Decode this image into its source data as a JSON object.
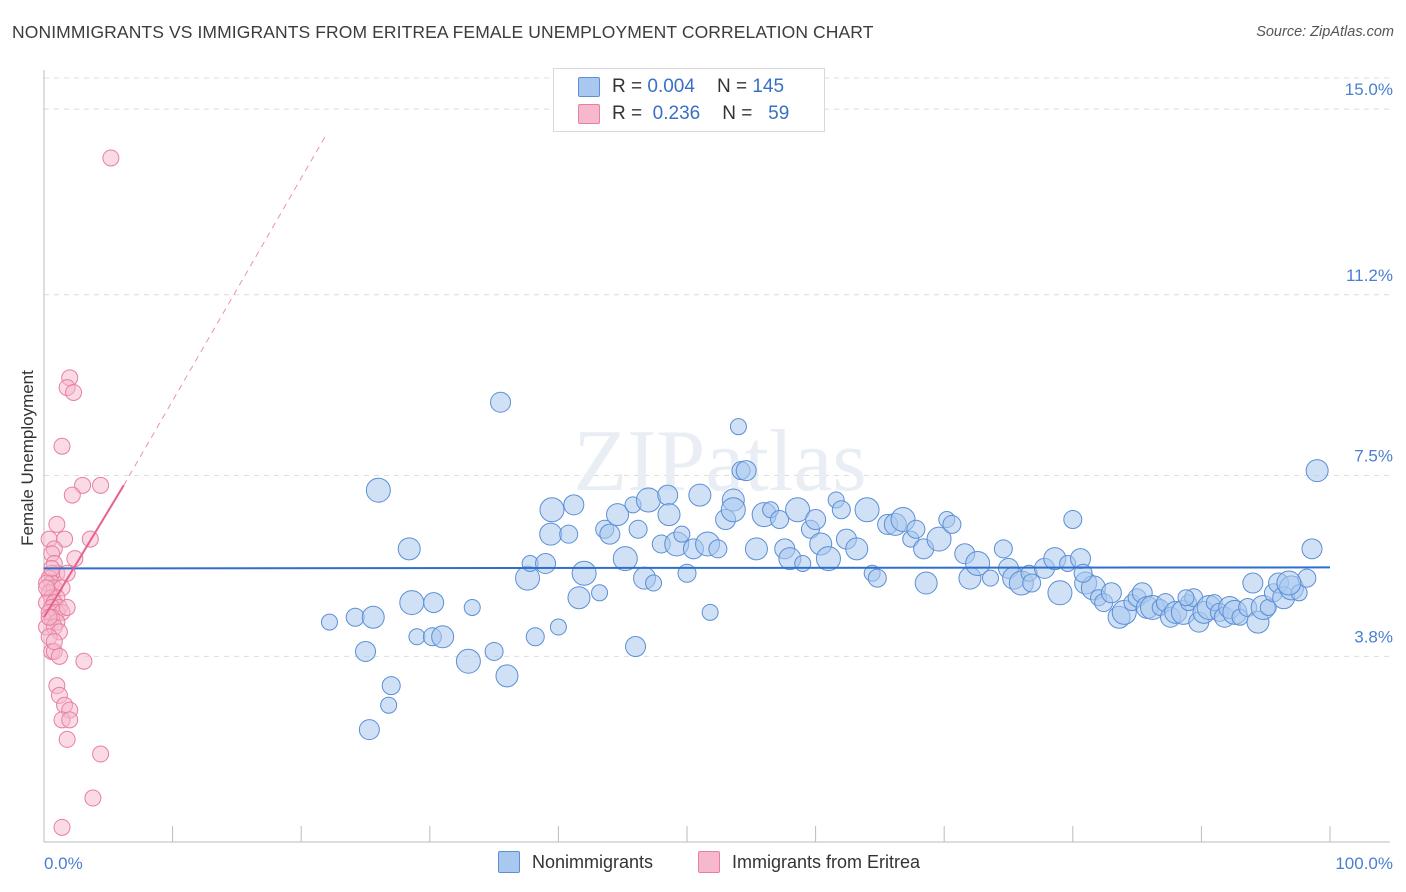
{
  "title": "NONIMMIGRANTS VS IMMIGRANTS FROM ERITREA FEMALE UNEMPLOYMENT CORRELATION CHART",
  "source": "Source: ZipAtlas.com",
  "watermark": "ZIPatlas",
  "colors": {
    "blue_fill": "#a9c8ef",
    "blue_stroke": "#5b8fd6",
    "blue_line": "#2e6fcc",
    "pink_fill": "#f6b8cc",
    "pink_stroke": "#e87fa0",
    "pink_line": "#e8608e",
    "tick_text": "#4a7fd0",
    "grid": "#dcdcdc"
  },
  "legend": {
    "rows": [
      {
        "r_label": "R =",
        "r_value": "0.004",
        "n_label": "N =",
        "n_value": "145"
      },
      {
        "r_label": "R =",
        "r_value": "0.236",
        "n_label": "N =",
        "n_value": "59"
      }
    ]
  },
  "bottom_legend": [
    "Nonimmigrants",
    "Immigrants from Eritrea"
  ],
  "chart_data": {
    "type": "scatter",
    "title": "NONIMMIGRANTS VS IMMIGRANTS FROM ERITREA FEMALE UNEMPLOYMENT CORRELATION CHART",
    "xlabel": "",
    "ylabel": "Female Unemployment",
    "xlim": [
      0,
      100
    ],
    "ylim": [
      0,
      15.8
    ],
    "x_tick_labels": [
      "0.0%",
      "100.0%"
    ],
    "y_ticks": [
      3.8,
      7.5,
      11.2,
      15.0
    ],
    "y_tick_labels": [
      "3.8%",
      "7.5%",
      "11.2%",
      "15.0%"
    ],
    "grid": "horizontal-dashed",
    "legend_position": "top-center",
    "series": [
      {
        "name": "Nonimmigrants",
        "trend": {
          "x0": 0,
          "y0": 5.6,
          "x1": 100,
          "y1": 5.62
        },
        "points": [
          [
            22.2,
            4.5
          ],
          [
            24.2,
            4.6
          ],
          [
            25.0,
            3.9
          ],
          [
            25.6,
            4.6
          ],
          [
            26.0,
            7.2
          ],
          [
            26.8,
            2.8
          ],
          [
            27.0,
            3.2
          ],
          [
            25.3,
            2.3
          ],
          [
            28.4,
            6.0
          ],
          [
            28.6,
            4.9
          ],
          [
            29.0,
            4.2
          ],
          [
            30.2,
            4.2
          ],
          [
            30.3,
            4.9
          ],
          [
            31.0,
            4.2
          ],
          [
            33.0,
            3.7
          ],
          [
            33.3,
            4.8
          ],
          [
            35.0,
            3.9
          ],
          [
            35.5,
            9.0
          ],
          [
            36.0,
            3.4
          ],
          [
            37.6,
            5.4
          ],
          [
            37.8,
            5.7
          ],
          [
            38.2,
            4.2
          ],
          [
            39.0,
            5.7
          ],
          [
            39.4,
            6.3
          ],
          [
            39.5,
            6.8
          ],
          [
            40.0,
            4.4
          ],
          [
            40.8,
            6.3
          ],
          [
            41.2,
            6.9
          ],
          [
            41.6,
            5.0
          ],
          [
            42.0,
            5.5
          ],
          [
            43.2,
            5.1
          ],
          [
            43.6,
            6.4
          ],
          [
            44.0,
            6.3
          ],
          [
            44.6,
            6.7
          ],
          [
            45.2,
            5.8
          ],
          [
            45.8,
            6.9
          ],
          [
            46.2,
            6.4
          ],
          [
            46.0,
            4.0
          ],
          [
            46.7,
            5.4
          ],
          [
            47.0,
            7.0
          ],
          [
            47.4,
            5.3
          ],
          [
            48.0,
            6.1
          ],
          [
            48.5,
            7.1
          ],
          [
            48.6,
            6.7
          ],
          [
            49.2,
            6.1
          ],
          [
            49.6,
            6.3
          ],
          [
            50.0,
            5.5
          ],
          [
            50.5,
            6.0
          ],
          [
            51.0,
            7.1
          ],
          [
            51.6,
            6.1
          ],
          [
            51.8,
            4.7
          ],
          [
            52.4,
            6.0
          ],
          [
            53.0,
            6.6
          ],
          [
            53.6,
            7.0
          ],
          [
            53.6,
            6.8
          ],
          [
            54.0,
            8.5
          ],
          [
            54.2,
            7.6
          ],
          [
            54.6,
            7.6
          ],
          [
            55.4,
            6.0
          ],
          [
            56.0,
            6.7
          ],
          [
            56.5,
            6.8
          ],
          [
            57.2,
            6.6
          ],
          [
            57.6,
            6.0
          ],
          [
            58.0,
            5.8
          ],
          [
            58.6,
            6.8
          ],
          [
            59.0,
            5.7
          ],
          [
            59.6,
            6.4
          ],
          [
            60.0,
            6.6
          ],
          [
            60.4,
            6.1
          ],
          [
            61.0,
            5.8
          ],
          [
            61.6,
            7.0
          ],
          [
            62.0,
            6.8
          ],
          [
            62.4,
            6.2
          ],
          [
            63.2,
            6.0
          ],
          [
            64.0,
            6.8
          ],
          [
            64.4,
            5.5
          ],
          [
            64.8,
            5.4
          ],
          [
            65.6,
            6.5
          ],
          [
            66.2,
            6.5
          ],
          [
            66.8,
            6.6
          ],
          [
            67.4,
            6.2
          ],
          [
            67.8,
            6.4
          ],
          [
            68.4,
            6.0
          ],
          [
            68.6,
            5.3
          ],
          [
            69.6,
            6.2
          ],
          [
            70.2,
            6.6
          ],
          [
            70.6,
            6.5
          ],
          [
            71.6,
            5.9
          ],
          [
            72.0,
            5.4
          ],
          [
            72.6,
            5.7
          ],
          [
            73.6,
            5.4
          ],
          [
            74.6,
            6.0
          ],
          [
            75.0,
            5.6
          ],
          [
            75.4,
            5.4
          ],
          [
            76.0,
            5.3
          ],
          [
            76.6,
            5.5
          ],
          [
            76.8,
            5.3
          ],
          [
            77.8,
            5.6
          ],
          [
            78.6,
            5.8
          ],
          [
            79.0,
            5.1
          ],
          [
            79.6,
            5.7
          ],
          [
            80.0,
            6.6
          ],
          [
            80.6,
            5.8
          ],
          [
            81.0,
            5.3
          ],
          [
            81.6,
            5.2
          ],
          [
            82.0,
            5.0
          ],
          [
            82.4,
            4.9
          ],
          [
            83.0,
            5.1
          ],
          [
            83.6,
            4.6
          ],
          [
            84.0,
            4.7
          ],
          [
            84.6,
            4.9
          ],
          [
            85.0,
            5.0
          ],
          [
            85.4,
            5.1
          ],
          [
            85.8,
            4.8
          ],
          [
            86.2,
            4.8
          ],
          [
            86.8,
            4.8
          ],
          [
            87.2,
            4.9
          ],
          [
            87.6,
            4.6
          ],
          [
            88.0,
            4.7
          ],
          [
            88.6,
            4.7
          ],
          [
            89.0,
            4.9
          ],
          [
            89.4,
            5.0
          ],
          [
            89.8,
            4.5
          ],
          [
            90.2,
            4.7
          ],
          [
            90.6,
            4.8
          ],
          [
            91.0,
            4.9
          ],
          [
            91.4,
            4.7
          ],
          [
            91.8,
            4.6
          ],
          [
            92.2,
            4.8
          ],
          [
            92.6,
            4.7
          ],
          [
            93.0,
            4.6
          ],
          [
            93.6,
            4.8
          ],
          [
            94.0,
            5.3
          ],
          [
            94.4,
            4.5
          ],
          [
            94.8,
            4.8
          ],
          [
            95.2,
            4.8
          ],
          [
            95.6,
            5.1
          ],
          [
            96.0,
            5.3
          ],
          [
            96.4,
            5.0
          ],
          [
            97.0,
            5.2
          ],
          [
            97.6,
            5.1
          ],
          [
            98.2,
            5.4
          ],
          [
            98.6,
            6.0
          ],
          [
            99.0,
            7.6
          ],
          [
            96.8,
            5.3
          ],
          [
            88.8,
            5.0
          ],
          [
            80.8,
            5.5
          ]
        ]
      },
      {
        "name": "Immigrants from Eritrea",
        "trend": {
          "x0": 0,
          "y0": 4.6,
          "x1": 6.2,
          "y1": 7.3,
          "dashed_to_x": 22,
          "dashed_to_y": 14.5
        },
        "points": [
          [
            5.2,
            14.0
          ],
          [
            2.0,
            9.5
          ],
          [
            1.8,
            9.3
          ],
          [
            2.3,
            9.2
          ],
          [
            1.4,
            8.1
          ],
          [
            3.0,
            7.3
          ],
          [
            4.4,
            7.3
          ],
          [
            2.2,
            7.1
          ],
          [
            1.0,
            6.5
          ],
          [
            0.4,
            6.2
          ],
          [
            1.6,
            6.2
          ],
          [
            3.6,
            6.2
          ],
          [
            0.8,
            6.0
          ],
          [
            0.6,
            5.9
          ],
          [
            2.4,
            5.8
          ],
          [
            0.8,
            5.7
          ],
          [
            1.0,
            5.5
          ],
          [
            0.6,
            5.5
          ],
          [
            1.8,
            5.5
          ],
          [
            0.4,
            5.4
          ],
          [
            0.6,
            5.3
          ],
          [
            0.2,
            5.3
          ],
          [
            0.8,
            5.2
          ],
          [
            1.4,
            5.2
          ],
          [
            0.4,
            5.1
          ],
          [
            0.6,
            5.0
          ],
          [
            1.0,
            5.0
          ],
          [
            0.2,
            4.9
          ],
          [
            0.8,
            4.9
          ],
          [
            1.2,
            4.8
          ],
          [
            0.6,
            4.8
          ],
          [
            0.4,
            4.7
          ],
          [
            1.0,
            4.7
          ],
          [
            1.4,
            4.7
          ],
          [
            0.6,
            4.6
          ],
          [
            1.0,
            4.5
          ],
          [
            0.2,
            4.4
          ],
          [
            0.8,
            4.4
          ],
          [
            1.2,
            4.3
          ],
          [
            0.4,
            4.2
          ],
          [
            0.6,
            3.9
          ],
          [
            0.8,
            3.9
          ],
          [
            1.2,
            3.8
          ],
          [
            3.1,
            3.7
          ],
          [
            1.0,
            3.2
          ],
          [
            1.2,
            3.0
          ],
          [
            1.6,
            2.8
          ],
          [
            2.0,
            2.7
          ],
          [
            1.4,
            2.5
          ],
          [
            2.0,
            2.5
          ],
          [
            1.8,
            2.1
          ],
          [
            4.4,
            1.8
          ],
          [
            3.8,
            0.9
          ],
          [
            1.4,
            0.3
          ],
          [
            0.6,
            5.6
          ],
          [
            0.2,
            5.2
          ],
          [
            1.8,
            4.8
          ],
          [
            0.4,
            4.6
          ],
          [
            0.8,
            4.1
          ]
        ]
      }
    ]
  }
}
